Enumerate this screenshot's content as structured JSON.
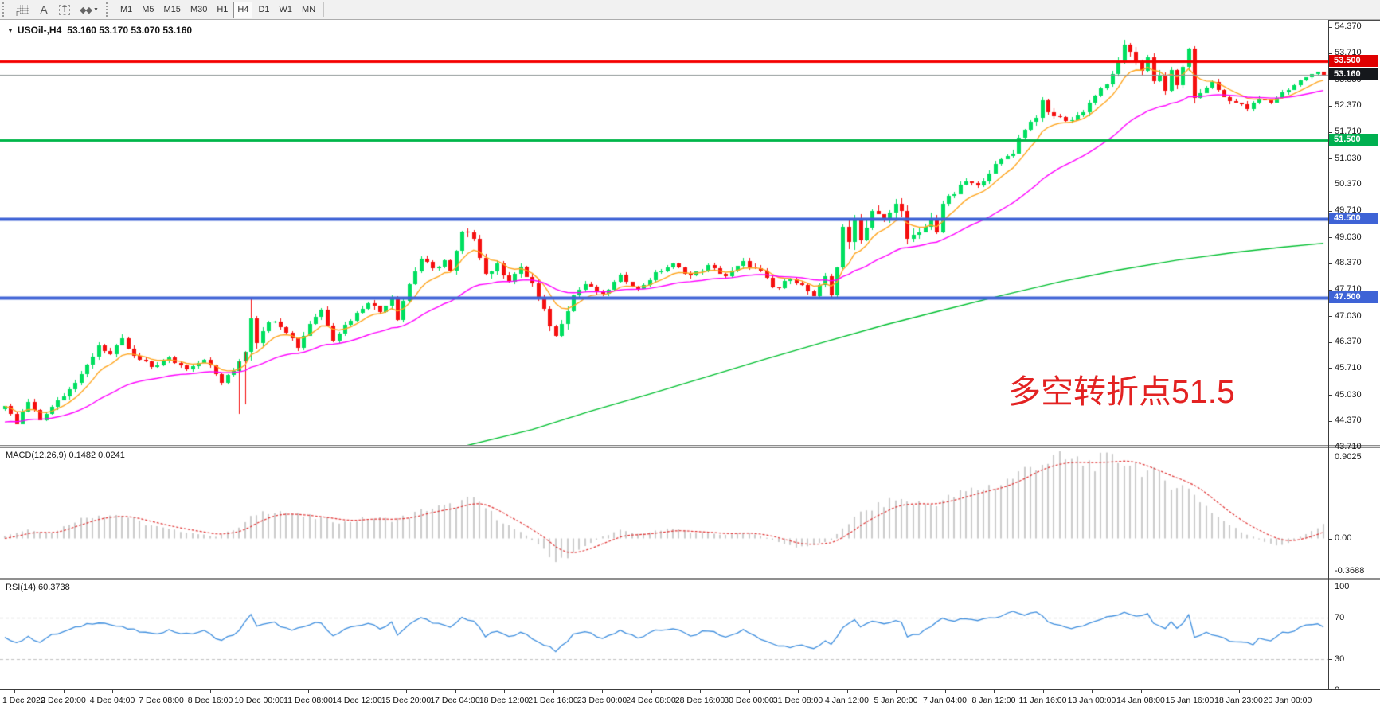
{
  "toolbar": {
    "tool_buttons": [
      {
        "name": "indicator-grid-icon",
        "glyph": "F"
      },
      {
        "name": "text-a-icon",
        "glyph": "A"
      },
      {
        "name": "text-label-icon",
        "glyph": "T"
      },
      {
        "name": "arrow-objects-icon",
        "glyph": "◆◆",
        "caret": "▼"
      }
    ],
    "timeframes": [
      "M1",
      "M5",
      "M15",
      "M30",
      "H1",
      "H4",
      "D1",
      "W1",
      "MN"
    ],
    "active_timeframe": "H4"
  },
  "chart": {
    "symbol_title": "USOil-,H4",
    "ohlc": "53.160 53.170 53.070 53.160",
    "dropdown_icon": "▼",
    "annotation": {
      "text": "多空转折点51.5",
      "color": "#e32222"
    },
    "price_ticks": [
      "54.370",
      "53.710",
      "53.030",
      "52.370",
      "51.710",
      "51.030",
      "50.370",
      "49.710",
      "49.030",
      "48.370",
      "47.710",
      "47.030",
      "46.370",
      "45.710",
      "45.030",
      "44.370",
      "43.710"
    ],
    "levels": [
      {
        "label": "53.500",
        "price": 53.5,
        "color": "#f40000",
        "chip": "#e00000",
        "width": 3
      },
      {
        "label": "53.160",
        "price": 53.16,
        "color": "#8c9494",
        "chip": "#15181c",
        "width": 1,
        "current": true
      },
      {
        "label": "51.500",
        "price": 51.5,
        "color": "#00b64a",
        "chip": "#00b050",
        "width": 3
      },
      {
        "label": "49.500",
        "price": 49.5,
        "color": "#3e63d6",
        "chip": "#3e63d6",
        "width": 4
      },
      {
        "label": "47.500",
        "price": 47.5,
        "color": "#3e63d6",
        "chip": "#3e63d6",
        "width": 4
      }
    ],
    "colors": {
      "bull": "#00df5f",
      "bear": "#f50f0f",
      "ma_fast": "#ffa51e",
      "ma_mid": "#ff00ff",
      "ma_slow": "#00bf30"
    },
    "bars_total": 226,
    "close_anchors": [
      [
        0,
        44.75
      ],
      [
        2,
        44.3
      ],
      [
        4,
        44.85
      ],
      [
        6,
        44.4
      ],
      [
        8,
        44.75
      ],
      [
        10,
        45.05
      ],
      [
        13,
        45.5
      ],
      [
        16,
        46.3
      ],
      [
        18,
        46.05
      ],
      [
        20,
        46.42
      ],
      [
        22,
        46.0
      ],
      [
        25,
        45.75
      ],
      [
        28,
        45.95
      ],
      [
        31,
        45.7
      ],
      [
        34,
        45.95
      ],
      [
        37,
        45.35
      ],
      [
        39,
        45.65
      ],
      [
        41,
        46.15
      ],
      [
        42,
        47.05
      ],
      [
        43,
        46.4
      ],
      [
        44,
        46.7
      ],
      [
        46,
        46.95
      ],
      [
        48,
        46.65
      ],
      [
        50,
        46.25
      ],
      [
        52,
        46.85
      ],
      [
        54,
        47.2
      ],
      [
        56,
        46.45
      ],
      [
        58,
        46.8
      ],
      [
        60,
        47.1
      ],
      [
        62,
        47.4
      ],
      [
        64,
        47.15
      ],
      [
        66,
        47.55
      ],
      [
        67,
        47.0
      ],
      [
        69,
        47.85
      ],
      [
        71,
        48.5
      ],
      [
        73,
        48.2
      ],
      [
        75,
        48.45
      ],
      [
        76,
        48.15
      ],
      [
        78,
        49.15
      ],
      [
        80,
        49.05
      ],
      [
        82,
        48.1
      ],
      [
        84,
        48.3
      ],
      [
        86,
        47.95
      ],
      [
        88,
        48.25
      ],
      [
        90,
        47.85
      ],
      [
        92,
        47.15
      ],
      [
        94,
        46.5
      ],
      [
        95,
        46.9
      ],
      [
        97,
        47.55
      ],
      [
        99,
        47.85
      ],
      [
        102,
        47.55
      ],
      [
        105,
        48.05
      ],
      [
        108,
        47.7
      ],
      [
        111,
        48.1
      ],
      [
        114,
        48.35
      ],
      [
        117,
        48.05
      ],
      [
        120,
        48.3
      ],
      [
        123,
        48.05
      ],
      [
        126,
        48.4
      ],
      [
        129,
        48.15
      ],
      [
        131,
        47.75
      ],
      [
        132,
        47.75
      ],
      [
        134,
        48.0
      ],
      [
        136,
        47.8
      ],
      [
        138,
        47.5
      ],
      [
        140,
        48.05
      ],
      [
        141,
        47.6
      ],
      [
        142,
        48.3
      ],
      [
        143,
        49.2
      ],
      [
        144,
        48.9
      ],
      [
        145,
        49.6
      ],
      [
        146,
        48.95
      ],
      [
        147,
        49.35
      ],
      [
        148,
        49.7
      ],
      [
        150,
        49.45
      ],
      [
        152,
        49.85
      ],
      [
        153,
        49.8
      ],
      [
        154,
        48.95
      ],
      [
        156,
        49.1
      ],
      [
        158,
        49.5
      ],
      [
        159,
        49.2
      ],
      [
        160,
        49.9
      ],
      [
        162,
        50.15
      ],
      [
        164,
        50.45
      ],
      [
        166,
        50.3
      ],
      [
        168,
        50.7
      ],
      [
        170,
        51.0
      ],
      [
        172,
        51.2
      ],
      [
        173,
        51.55
      ],
      [
        174,
        51.8
      ],
      [
        176,
        52.1
      ],
      [
        177,
        52.45
      ],
      [
        178,
        52.2
      ],
      [
        180,
        52.05
      ],
      [
        182,
        52.0
      ],
      [
        184,
        52.25
      ],
      [
        186,
        52.65
      ],
      [
        188,
        52.9
      ],
      [
        189,
        53.2
      ],
      [
        190,
        53.45
      ],
      [
        191,
        53.85
      ],
      [
        192,
        53.75
      ],
      [
        193,
        53.5
      ],
      [
        194,
        53.3
      ],
      [
        195,
        53.55
      ],
      [
        196,
        52.95
      ],
      [
        197,
        53.15
      ],
      [
        198,
        52.8
      ],
      [
        199,
        53.2
      ],
      [
        200,
        52.95
      ],
      [
        201,
        53.3
      ],
      [
        202,
        53.85
      ],
      [
        203,
        52.55
      ],
      [
        205,
        52.85
      ],
      [
        206,
        52.95
      ],
      [
        208,
        52.6
      ],
      [
        210,
        52.45
      ],
      [
        212,
        52.3
      ],
      [
        214,
        52.55
      ],
      [
        216,
        52.45
      ],
      [
        218,
        52.7
      ],
      [
        220,
        52.9
      ],
      [
        222,
        53.1
      ],
      [
        224,
        53.22
      ],
      [
        225,
        53.16
      ]
    ],
    "vol_anchors": [
      [
        0,
        0.1
      ],
      [
        14,
        0.12
      ],
      [
        20,
        0.12
      ],
      [
        30,
        0.09
      ],
      [
        40,
        0.1
      ],
      [
        42,
        0.28
      ],
      [
        44,
        0.14
      ],
      [
        50,
        0.12
      ],
      [
        60,
        0.1
      ],
      [
        67,
        0.16
      ],
      [
        71,
        0.12
      ],
      [
        78,
        0.14
      ],
      [
        82,
        0.16
      ],
      [
        90,
        0.12
      ],
      [
        94,
        0.2
      ],
      [
        100,
        0.1
      ],
      [
        120,
        0.09
      ],
      [
        131,
        0.12
      ],
      [
        136,
        0.1
      ],
      [
        141,
        0.16
      ],
      [
        143,
        0.26
      ],
      [
        148,
        0.22
      ],
      [
        154,
        0.24
      ],
      [
        160,
        0.16
      ],
      [
        170,
        0.12
      ],
      [
        180,
        0.12
      ],
      [
        188,
        0.14
      ],
      [
        191,
        0.16
      ],
      [
        196,
        0.16
      ],
      [
        202,
        0.2
      ],
      [
        205,
        0.12
      ],
      [
        212,
        0.1
      ],
      [
        218,
        0.08
      ],
      [
        225,
        0.05
      ]
    ],
    "ma_slow_anchors": [
      [
        77,
        43.68
      ],
      [
        90,
        44.15
      ],
      [
        100,
        44.62
      ],
      [
        110,
        45.05
      ],
      [
        120,
        45.5
      ],
      [
        130,
        45.95
      ],
      [
        140,
        46.38
      ],
      [
        150,
        46.8
      ],
      [
        160,
        47.18
      ],
      [
        170,
        47.55
      ],
      [
        180,
        47.9
      ],
      [
        190,
        48.2
      ],
      [
        200,
        48.45
      ],
      [
        210,
        48.65
      ],
      [
        218,
        48.78
      ],
      [
        225,
        48.88
      ]
    ],
    "extra_wicks": [
      {
        "i": 40,
        "low": 44.55
      },
      {
        "i": 41,
        "low": 44.8
      },
      {
        "i": 42,
        "high": 47.5
      }
    ]
  },
  "macd": {
    "label": "MACD(12,26,9) 0.1482 0.0241",
    "ticks": [
      {
        "label": "0.9025",
        "value": 0.9025
      },
      {
        "label": "0.00",
        "value": 0.0
      },
      {
        "label": "-0.3688",
        "value": -0.3688
      }
    ],
    "hist_color": "#cbcbcb",
    "signal_color": "#e03535",
    "anchors": [
      [
        0,
        0.03
      ],
      [
        4,
        0.1
      ],
      [
        8,
        0.06
      ],
      [
        12,
        0.2
      ],
      [
        16,
        0.27
      ],
      [
        20,
        0.26
      ],
      [
        24,
        0.16
      ],
      [
        28,
        0.1
      ],
      [
        32,
        0.06
      ],
      [
        36,
        0.02
      ],
      [
        40,
        0.12
      ],
      [
        43,
        0.28
      ],
      [
        46,
        0.32
      ],
      [
        50,
        0.26
      ],
      [
        54,
        0.22
      ],
      [
        58,
        0.18
      ],
      [
        62,
        0.23
      ],
      [
        66,
        0.21
      ],
      [
        69,
        0.25
      ],
      [
        72,
        0.33
      ],
      [
        76,
        0.36
      ],
      [
        79,
        0.43
      ],
      [
        81,
        0.4
      ],
      [
        83,
        0.28
      ],
      [
        86,
        0.14
      ],
      [
        89,
        0.03
      ],
      [
        92,
        -0.12
      ],
      [
        94,
        -0.26
      ],
      [
        96,
        -0.22
      ],
      [
        99,
        -0.08
      ],
      [
        102,
        0.02
      ],
      [
        105,
        0.09
      ],
      [
        108,
        0.05
      ],
      [
        111,
        0.08
      ],
      [
        114,
        0.11
      ],
      [
        117,
        0.07
      ],
      [
        120,
        0.06
      ],
      [
        123,
        0.04
      ],
      [
        126,
        0.07
      ],
      [
        129,
        0.03
      ],
      [
        132,
        -0.04
      ],
      [
        135,
        -0.1
      ],
      [
        138,
        -0.07
      ],
      [
        141,
        -0.02
      ],
      [
        143,
        0.12
      ],
      [
        146,
        0.28
      ],
      [
        149,
        0.36
      ],
      [
        152,
        0.44
      ],
      [
        155,
        0.4
      ],
      [
        158,
        0.38
      ],
      [
        161,
        0.45
      ],
      [
        164,
        0.52
      ],
      [
        167,
        0.57
      ],
      [
        170,
        0.61
      ],
      [
        173,
        0.72
      ],
      [
        176,
        0.84
      ],
      [
        179,
        0.88
      ],
      [
        182,
        0.87
      ],
      [
        185,
        0.84
      ],
      [
        188,
        0.86
      ],
      [
        191,
        0.88
      ],
      [
        193,
        0.82
      ],
      [
        195,
        0.74
      ],
      [
        197,
        0.68
      ],
      [
        199,
        0.62
      ],
      [
        201,
        0.58
      ],
      [
        203,
        0.5
      ],
      [
        205,
        0.36
      ],
      [
        207,
        0.24
      ],
      [
        209,
        0.15
      ],
      [
        211,
        0.07
      ],
      [
        213,
        0.02
      ],
      [
        215,
        -0.04
      ],
      [
        217,
        -0.08
      ],
      [
        219,
        -0.05
      ],
      [
        221,
        0.02
      ],
      [
        223,
        0.08
      ],
      [
        225,
        0.148
      ]
    ]
  },
  "rsi": {
    "label": "RSI(14) 60.3738",
    "ticks": [
      {
        "label": "100",
        "value": 100
      },
      {
        "label": "70",
        "value": 70
      },
      {
        "label": "30",
        "value": 30
      },
      {
        "label": "0",
        "value": 0
      }
    ],
    "level_lines": [
      70,
      30
    ],
    "color": "#3e8ede",
    "anchors": [
      [
        0,
        52
      ],
      [
        2,
        46
      ],
      [
        4,
        51
      ],
      [
        6,
        47
      ],
      [
        8,
        53
      ],
      [
        11,
        58
      ],
      [
        14,
        64
      ],
      [
        16,
        66
      ],
      [
        19,
        62
      ],
      [
        22,
        58
      ],
      [
        25,
        54
      ],
      [
        28,
        58
      ],
      [
        31,
        54
      ],
      [
        34,
        57
      ],
      [
        37,
        48
      ],
      [
        40,
        57
      ],
      [
        42,
        74
      ],
      [
        43,
        62
      ],
      [
        46,
        65
      ],
      [
        49,
        57
      ],
      [
        52,
        63
      ],
      [
        54,
        66
      ],
      [
        56,
        52
      ],
      [
        58,
        58
      ],
      [
        60,
        62
      ],
      [
        62,
        65
      ],
      [
        64,
        59
      ],
      [
        66,
        66
      ],
      [
        67,
        54
      ],
      [
        69,
        63
      ],
      [
        71,
        70
      ],
      [
        74,
        64
      ],
      [
        76,
        60
      ],
      [
        78,
        70
      ],
      [
        80,
        67
      ],
      [
        82,
        52
      ],
      [
        84,
        57
      ],
      [
        86,
        51
      ],
      [
        88,
        57
      ],
      [
        90,
        49
      ],
      [
        93,
        42
      ],
      [
        94,
        38
      ],
      [
        95,
        43
      ],
      [
        97,
        53
      ],
      [
        99,
        57
      ],
      [
        102,
        50
      ],
      [
        105,
        58
      ],
      [
        108,
        50
      ],
      [
        111,
        57
      ],
      [
        114,
        60
      ],
      [
        117,
        52
      ],
      [
        120,
        58
      ],
      [
        123,
        51
      ],
      [
        126,
        58
      ],
      [
        129,
        50
      ],
      [
        131,
        44
      ],
      [
        134,
        41
      ],
      [
        136,
        44
      ],
      [
        138,
        40
      ],
      [
        140,
        48
      ],
      [
        141,
        44
      ],
      [
        143,
        60
      ],
      [
        145,
        68
      ],
      [
        146,
        62
      ],
      [
        148,
        67
      ],
      [
        150,
        63
      ],
      [
        152,
        67
      ],
      [
        153,
        65
      ],
      [
        154,
        52
      ],
      [
        156,
        55
      ],
      [
        158,
        60
      ],
      [
        160,
        70
      ],
      [
        162,
        67
      ],
      [
        164,
        70
      ],
      [
        166,
        66
      ],
      [
        168,
        70
      ],
      [
        170,
        72
      ],
      [
        172,
        76
      ],
      [
        174,
        73
      ],
      [
        176,
        76
      ],
      [
        177,
        72
      ],
      [
        178,
        66
      ],
      [
        180,
        62
      ],
      [
        182,
        60
      ],
      [
        184,
        63
      ],
      [
        186,
        67
      ],
      [
        188,
        70
      ],
      [
        190,
        73
      ],
      [
        191,
        76
      ],
      [
        193,
        71
      ],
      [
        195,
        73
      ],
      [
        196,
        64
      ],
      [
        198,
        60
      ],
      [
        199,
        65
      ],
      [
        200,
        61
      ],
      [
        201,
        65
      ],
      [
        202,
        72
      ],
      [
        203,
        52
      ],
      [
        205,
        55
      ],
      [
        207,
        52
      ],
      [
        209,
        48
      ],
      [
        211,
        46
      ],
      [
        213,
        44
      ],
      [
        214,
        50
      ],
      [
        216,
        48
      ],
      [
        218,
        55
      ],
      [
        220,
        58
      ],
      [
        222,
        62
      ],
      [
        224,
        63
      ],
      [
        225,
        60.4
      ]
    ]
  },
  "time_axis": {
    "labels": [
      "1 Dec 2020",
      "2 Dec 20:00",
      "4 Dec 04:00",
      "7 Dec 08:00",
      "8 Dec 16:00",
      "10 Dec 00:00",
      "11 Dec 08:00",
      "14 Dec 12:00",
      "15 Dec 20:00",
      "17 Dec 04:00",
      "18 Dec 12:00",
      "21 Dec 16:00",
      "23 Dec 00:00",
      "24 Dec 08:00",
      "28 Dec 16:00",
      "30 Dec 00:00",
      "31 Dec 08:00",
      "4 Jan 12:00",
      "5 Jan 20:00",
      "7 Jan 04:00",
      "8 Jan 12:00",
      "11 Jan 16:00",
      "13 Jan 00:00",
      "14 Jan 08:00",
      "15 Jan 16:00",
      "18 Jan 23:00",
      "20 Jan 00:00"
    ]
  }
}
